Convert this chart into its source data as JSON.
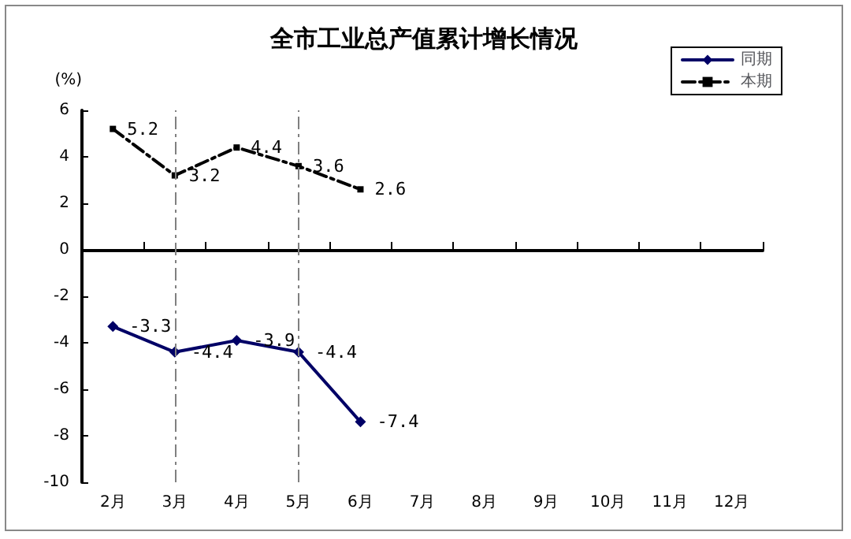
{
  "chart_data": {
    "type": "line",
    "title": "全市工业总产值累计增长情况",
    "ylabel": "(%)",
    "categories": [
      "2月",
      "3月",
      "4月",
      "5月",
      "6月",
      "7月",
      "8月",
      "9月",
      "10月",
      "11月",
      "12月"
    ],
    "series": [
      {
        "name": "同期",
        "color": "#000066",
        "marker": "diamond",
        "line_style": "solid",
        "values": [
          -3.3,
          -4.4,
          -3.9,
          -4.4,
          -7.4,
          null,
          null,
          null,
          null,
          null,
          null
        ]
      },
      {
        "name": "本期",
        "color": "#000000",
        "marker": "square",
        "line_style": "dashed",
        "values": [
          5.2,
          3.2,
          4.4,
          3.6,
          2.6,
          null,
          null,
          null,
          null,
          null,
          null
        ]
      }
    ],
    "ylim": [
      -10,
      6
    ],
    "yticks": [
      -10,
      -8,
      -6,
      -4,
      -2,
      0,
      2,
      4,
      6
    ],
    "ref_lines": [
      {
        "axis": "x",
        "value": "3月",
        "color": "#808080",
        "line_style": "dashed"
      },
      {
        "axis": "x",
        "value": "5月",
        "color": "#808080",
        "line_style": "dashed"
      }
    ],
    "data_labels": true,
    "grid": false,
    "legend": "top right"
  }
}
